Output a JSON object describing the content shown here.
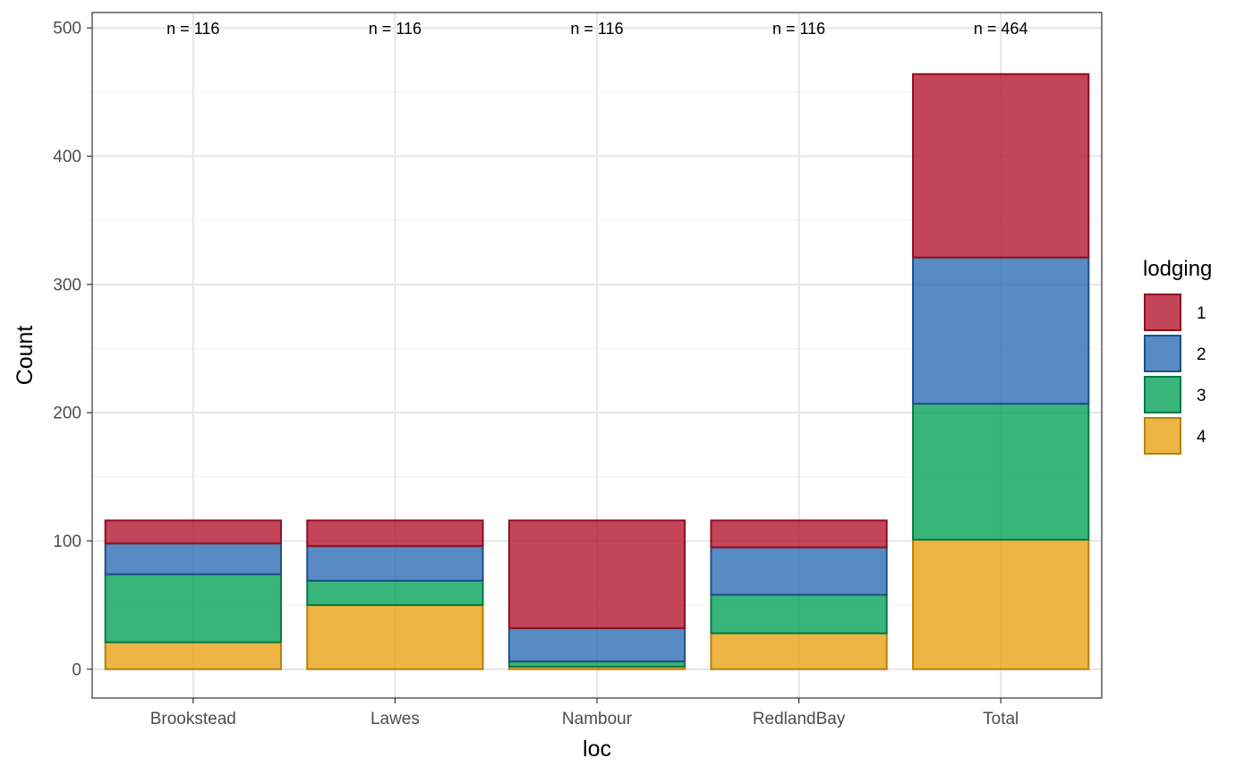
{
  "chart_data": {
    "type": "bar",
    "stacked": true,
    "xlabel": "loc",
    "ylabel": "Count",
    "ylim": [
      -22.5,
      512
    ],
    "yticks": [
      0,
      100,
      200,
      300,
      400,
      500
    ],
    "grid": true,
    "categories": [
      "Brookstead",
      "Lawes",
      "Nambour",
      "RedlandBay",
      "Total"
    ],
    "series": [
      {
        "name": "4",
        "fill": "#E8A215",
        "stroke": "#B8800A",
        "values": [
          21,
          50,
          2,
          28,
          101
        ]
      },
      {
        "name": "3",
        "fill": "#07A35A",
        "stroke": "#067A43",
        "values": [
          53,
          19,
          4,
          30,
          106
        ]
      },
      {
        "name": "2",
        "fill": "#2E6DB4",
        "stroke": "#1F4F87",
        "values": [
          24,
          27,
          26,
          37,
          114
        ]
      },
      {
        "name": "1",
        "fill": "#B5172F",
        "stroke": "#8C1022",
        "values": [
          18,
          20,
          84,
          21,
          143
        ]
      }
    ],
    "annotations": [
      "n = 116",
      "n = 116",
      "n = 116",
      "n = 116",
      "n = 464"
    ],
    "legend": {
      "title": "lodging",
      "placement": "right",
      "items": [
        "1",
        "2",
        "3",
        "4"
      ]
    }
  }
}
